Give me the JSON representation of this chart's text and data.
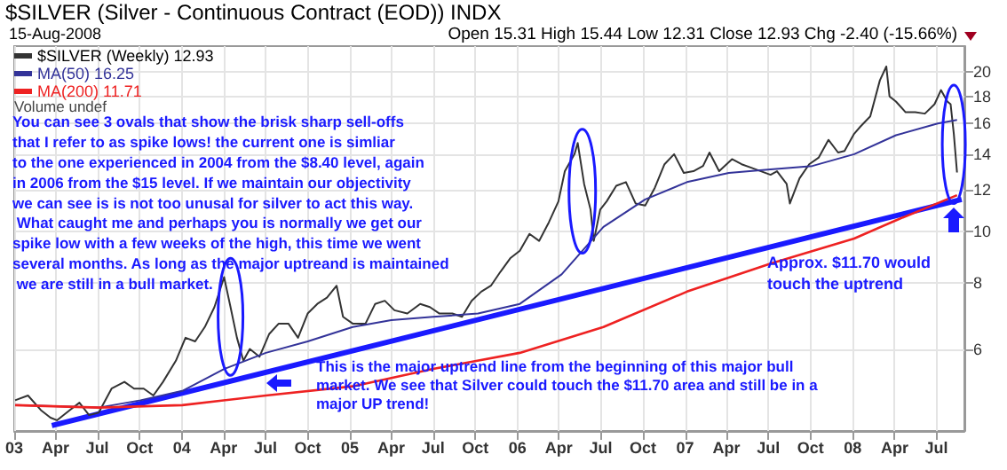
{
  "chart_data": {
    "type": "line",
    "title": "$SILVER (Silver - Continuous Contract (EOD)) INDX",
    "subtitle": "15-Aug-2008",
    "annotations": [
      "Open 15.31 High 15.44 Low 12.31 Close 12.93 Chg -2.40 (-15.66%)",
      "Volume undef",
      "You can see 3 ovals that show the brisk sharp sell-offs that I refer to as spike lows! the current one is simliar to the one experienced in 2004 from the $8.40 level, again in 2006 from the $15 level. If we maintain our objectivity we can see is is not too unusal for silver to act this way. What caught me and perhaps you is normally we get our spike low with a few weeks of the high, this time we went several months. As long as the major uptreand is maintained we are still in a bull market.",
      "This is the major uptrend line from the beginning of this major bull market. We see that Silver could touch the $11.70 area and still be in a major UP trend!",
      "Approx. $11.70 would touch the uptrend"
    ],
    "xlim": [
      "2003-01-01",
      "2008-08-31"
    ],
    "xticks": [
      {
        "value": "2003-01",
        "label": "03"
      },
      {
        "value": "2003-04",
        "label": "Apr"
      },
      {
        "value": "2003-07",
        "label": "Jul"
      },
      {
        "value": "2003-10",
        "label": "Oct"
      },
      {
        "value": "2004-01",
        "label": "04"
      },
      {
        "value": "2004-04",
        "label": "Apr"
      },
      {
        "value": "2004-07",
        "label": "Jul"
      },
      {
        "value": "2004-10",
        "label": "Oct"
      },
      {
        "value": "2005-01",
        "label": "05"
      },
      {
        "value": "2005-04",
        "label": "Apr"
      },
      {
        "value": "2005-07",
        "label": "Jul"
      },
      {
        "value": "2005-10",
        "label": "Oct"
      },
      {
        "value": "2006-01",
        "label": "06"
      },
      {
        "value": "2006-04",
        "label": "Apr"
      },
      {
        "value": "2006-07",
        "label": "Jul"
      },
      {
        "value": "2006-10",
        "label": "Oct"
      },
      {
        "value": "2007-01",
        "label": "07"
      },
      {
        "value": "2007-04",
        "label": "Apr"
      },
      {
        "value": "2007-07",
        "label": "Jul"
      },
      {
        "value": "2007-10",
        "label": "Oct"
      },
      {
        "value": "2008-01",
        "label": "08"
      },
      {
        "value": "2008-04",
        "label": "Apr"
      },
      {
        "value": "2008-07",
        "label": "Jul"
      }
    ],
    "ylim": [
      4.2,
      22.4
    ],
    "yticks": [
      6,
      8,
      10,
      12,
      14,
      16,
      18,
      20
    ],
    "log": true,
    "grid": true,
    "legend": "top left",
    "marker": "none",
    "line_style": "solid",
    "series": [
      {
        "name": "$SILVER (Weekly) 12.93",
        "color": "#333333",
        "x": [
          "2003-01-03",
          "2003-01-31",
          "2003-02-28",
          "2003-03-21",
          "2003-04-04",
          "2003-05-02",
          "2003-05-23",
          "2003-06-13",
          "2003-07-04",
          "2003-08-01",
          "2003-08-29",
          "2003-09-19",
          "2003-10-10",
          "2003-10-31",
          "2003-11-21",
          "2003-12-19",
          "2004-01-09",
          "2004-01-30",
          "2004-02-20",
          "2004-03-12",
          "2004-04-02",
          "2004-04-16",
          "2004-04-30",
          "2004-05-14",
          "2004-05-28",
          "2004-06-18",
          "2004-07-09",
          "2004-07-30",
          "2004-08-20",
          "2004-09-10",
          "2004-10-01",
          "2004-10-22",
          "2004-11-12",
          "2004-12-03",
          "2004-12-17",
          "2005-01-07",
          "2005-02-04",
          "2005-02-25",
          "2005-03-18",
          "2005-04-08",
          "2005-05-06",
          "2005-06-03",
          "2005-06-24",
          "2005-07-15",
          "2005-08-12",
          "2005-09-02",
          "2005-09-23",
          "2005-10-14",
          "2005-11-04",
          "2005-11-25",
          "2005-12-16",
          "2006-01-06",
          "2006-01-27",
          "2006-02-17",
          "2006-03-10",
          "2006-03-31",
          "2006-04-14",
          "2006-05-05",
          "2006-05-12",
          "2006-05-26",
          "2006-06-09",
          "2006-06-16",
          "2006-06-30",
          "2006-07-14",
          "2006-08-04",
          "2006-08-25",
          "2006-09-15",
          "2006-10-06",
          "2006-10-27",
          "2006-11-17",
          "2006-12-08",
          "2006-12-29",
          "2007-01-19",
          "2007-02-09",
          "2007-02-23",
          "2007-03-16",
          "2007-04-13",
          "2007-05-04",
          "2007-05-25",
          "2007-06-15",
          "2007-07-06",
          "2007-07-20",
          "2007-08-10",
          "2007-08-17",
          "2007-09-07",
          "2007-09-28",
          "2007-10-19",
          "2007-11-09",
          "2007-11-30",
          "2007-12-14",
          "2008-01-04",
          "2008-01-18",
          "2008-02-08",
          "2008-02-29",
          "2008-03-14",
          "2008-03-21",
          "2008-04-04",
          "2008-04-25",
          "2008-05-16",
          "2008-06-06",
          "2008-06-27",
          "2008-07-11",
          "2008-07-25",
          "2008-08-01",
          "2008-08-08",
          "2008-08-15"
        ],
        "values": [
          4.8,
          4.9,
          4.6,
          4.45,
          4.4,
          4.6,
          4.75,
          4.5,
          4.55,
          5.05,
          5.2,
          5.05,
          5.05,
          4.9,
          5.2,
          5.7,
          6.3,
          6.2,
          6.6,
          7.2,
          8.2,
          7.2,
          6.3,
          5.7,
          6.0,
          5.8,
          6.4,
          6.7,
          6.7,
          6.3,
          7.0,
          7.3,
          7.5,
          7.9,
          6.9,
          6.7,
          6.7,
          7.3,
          7.4,
          7.1,
          7.0,
          7.3,
          7.2,
          7.0,
          7.0,
          6.9,
          7.4,
          7.7,
          7.9,
          8.4,
          8.9,
          9.2,
          9.9,
          9.6,
          10.4,
          11.4,
          13.0,
          14.0,
          14.7,
          12.3,
          11.0,
          9.6,
          11.0,
          11.4,
          12.2,
          12.4,
          11.3,
          11.2,
          12.1,
          13.4,
          14.0,
          12.9,
          13.0,
          13.3,
          14.1,
          13.0,
          13.7,
          13.4,
          13.2,
          13.0,
          12.8,
          13.0,
          12.3,
          11.3,
          12.6,
          13.4,
          13.8,
          14.9,
          14.1,
          14.2,
          15.3,
          15.8,
          16.5,
          19.3,
          20.5,
          18.0,
          17.6,
          16.8,
          16.8,
          16.7,
          17.4,
          18.5,
          17.6,
          17.4,
          15.3,
          12.93
        ]
      },
      {
        "name": "MA(50) 16.25",
        "color": "#333399",
        "x": [
          "2003-01-03",
          "2003-07-04",
          "2003-10-03",
          "2004-01-02",
          "2004-04-02",
          "2004-07-02",
          "2004-10-01",
          "2005-01-07",
          "2005-04-01",
          "2005-07-01",
          "2005-10-07",
          "2006-01-06",
          "2006-04-07",
          "2006-07-07",
          "2006-10-06",
          "2007-01-05",
          "2007-04-06",
          "2007-07-06",
          "2007-10-05",
          "2008-01-04",
          "2008-04-04",
          "2008-07-04",
          "2008-08-15"
        ],
        "values": [
          4.7,
          4.65,
          4.8,
          5.0,
          5.5,
          5.9,
          6.2,
          6.6,
          6.8,
          6.9,
          7.0,
          7.3,
          8.3,
          10.2,
          11.5,
          12.4,
          12.9,
          13.1,
          13.3,
          14.0,
          15.2,
          16.0,
          16.25
        ]
      },
      {
        "name": "MA(200) 11.71",
        "color": "#ee2222",
        "x": [
          "2003-01-03",
          "2003-07-04",
          "2004-01-02",
          "2004-07-02",
          "2005-01-07",
          "2005-07-01",
          "2006-01-06",
          "2006-07-07",
          "2007-01-05",
          "2007-07-06",
          "2008-01-04",
          "2008-04-04",
          "2008-08-15"
        ],
        "values": [
          4.7,
          4.65,
          4.7,
          4.9,
          5.1,
          5.5,
          5.9,
          6.6,
          7.7,
          8.7,
          9.7,
          10.5,
          11.71
        ]
      },
      {
        "color": "#1a1aff",
        "x": [
          "2003-03-24",
          "2008-08-25"
        ],
        "values": [
          4.3,
          11.5
        ]
      }
    ]
  }
}
